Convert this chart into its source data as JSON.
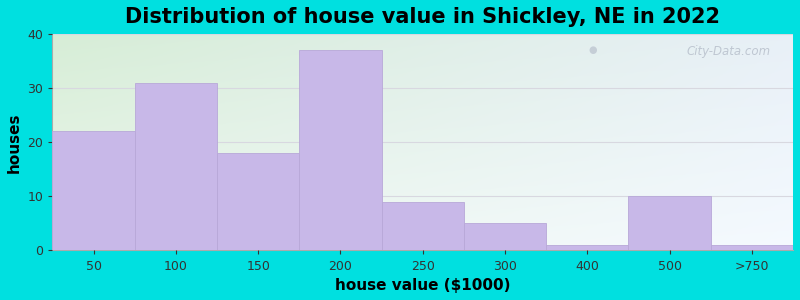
{
  "title": "Distribution of house value in Shickley, NE in 2022",
  "xlabel": "house value ($1000)",
  "ylabel": "houses",
  "categories": [
    "50",
    "100",
    "150",
    "200",
    "250",
    "300",
    "400",
    "500",
    ">750"
  ],
  "values": [
    22,
    31,
    18,
    37,
    9,
    5,
    1,
    10,
    1
  ],
  "bar_color": "#c8b8e8",
  "bar_edgecolor": "#b8a8d8",
  "ylim": [
    0,
    40
  ],
  "yticks": [
    0,
    10,
    20,
    30,
    40
  ],
  "outer_bg": "#00e0e0",
  "plot_bg_topleft": "#d8ecd8",
  "plot_bg_topright": "#e8f0f8",
  "plot_bg_bottomright": "#f0f8ff",
  "grid_color": "#d8d8e0",
  "title_fontsize": 15,
  "axis_fontsize": 11,
  "tick_fontsize": 9,
  "watermark_text": "City-Data.com",
  "watermark_color": "#b8c0cc"
}
